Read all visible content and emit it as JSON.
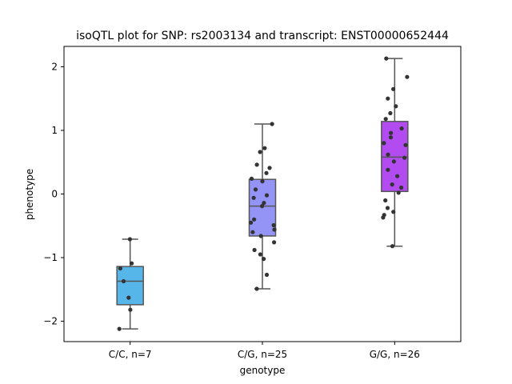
{
  "chart_data": {
    "type": "box",
    "title": "isoQTL plot for SNP: rs2003134 and transcript: ENST00000652444",
    "xlabel": "genotype",
    "ylabel": "phenotype",
    "ylim": [
      -2.32,
      2.32
    ],
    "yticks": [
      -2,
      -1,
      0,
      1,
      2
    ],
    "ytick_labels": [
      "−2",
      "−1",
      "0",
      "1",
      "2"
    ],
    "grid": false,
    "categories": [
      "C/C, n=7",
      "C/G, n=25",
      "G/G, n=26"
    ],
    "boxes": [
      {
        "label": "C/C, n=7",
        "color": "#56b6ea",
        "whisker_low": -2.12,
        "q1": -1.74,
        "median": -1.37,
        "q3": -1.14,
        "whisker_high": -0.71,
        "points": [
          -0.71,
          -1.09,
          -1.17,
          -1.37,
          -1.63,
          -1.82,
          -2.12
        ]
      },
      {
        "label": "C/G, n=25",
        "color": "#9394f6",
        "whisker_low": -1.49,
        "q1": -0.66,
        "median": -0.19,
        "q3": 0.23,
        "whisker_high": 1.1,
        "points": [
          1.1,
          0.72,
          0.66,
          0.46,
          0.41,
          0.33,
          0.24,
          0.2,
          0.07,
          -0.02,
          -0.06,
          -0.14,
          -0.19,
          -0.4,
          -0.45,
          -0.49,
          -0.56,
          -0.6,
          -0.66,
          -0.76,
          -0.88,
          -0.95,
          -1.02,
          -1.27,
          -1.49
        ]
      },
      {
        "label": "G/G, n=26",
        "color": "#b24cf0",
        "whisker_low": -0.82,
        "q1": 0.04,
        "median": 0.58,
        "q3": 1.14,
        "whisker_high": 2.13,
        "points": [
          2.13,
          1.84,
          1.65,
          1.5,
          1.38,
          1.27,
          1.18,
          1.03,
          0.96,
          0.89,
          0.8,
          0.77,
          0.62,
          0.57,
          0.51,
          0.38,
          0.28,
          0.15,
          0.1,
          0.02,
          -0.1,
          -0.22,
          -0.28,
          -0.33,
          -0.37,
          -0.82
        ]
      }
    ]
  }
}
